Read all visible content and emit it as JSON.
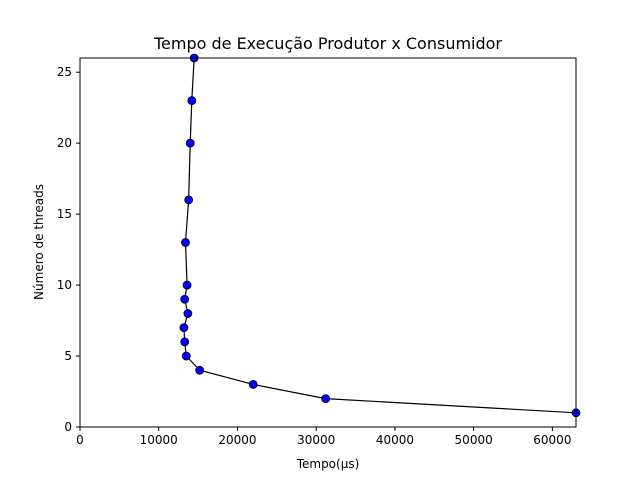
{
  "chart_data": {
    "type": "line",
    "title": "Tempo de Execução Produtor x Consumidor",
    "xlabel": "Tempo(μs)",
    "ylabel": "Número de threads",
    "xlim": [
      0,
      63000
    ],
    "ylim": [
      0,
      26
    ],
    "xticks": [
      0,
      10000,
      20000,
      30000,
      40000,
      50000,
      60000
    ],
    "yticks": [
      0,
      5,
      10,
      15,
      20,
      25
    ],
    "grid": false,
    "series": [
      {
        "line_color": "#000000",
        "marker_face": "#0000ff",
        "marker_edge": "#000000",
        "marker": "circle",
        "points": [
          {
            "x": 63000,
            "y": 1
          },
          {
            "x": 31200,
            "y": 2
          },
          {
            "x": 22000,
            "y": 3
          },
          {
            "x": 15200,
            "y": 4
          },
          {
            "x": 13500,
            "y": 5
          },
          {
            "x": 13300,
            "y": 6
          },
          {
            "x": 13200,
            "y": 7
          },
          {
            "x": 13700,
            "y": 8
          },
          {
            "x": 13300,
            "y": 9
          },
          {
            "x": 13600,
            "y": 10
          },
          {
            "x": 13400,
            "y": 13
          },
          {
            "x": 13800,
            "y": 16
          },
          {
            "x": 14000,
            "y": 20
          },
          {
            "x": 14200,
            "y": 23
          },
          {
            "x": 14500,
            "y": 26
          }
        ]
      }
    ]
  }
}
